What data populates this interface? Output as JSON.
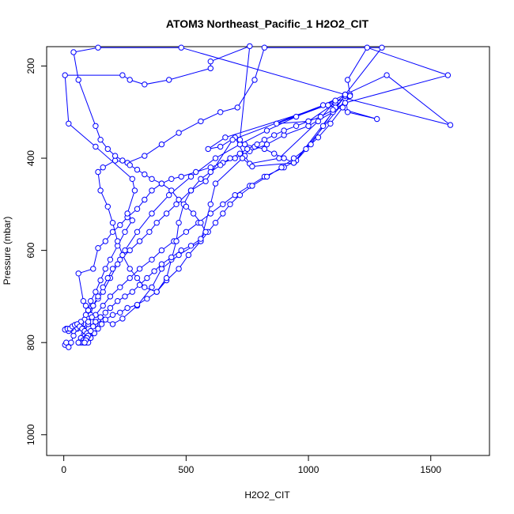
{
  "chart_data": {
    "type": "line",
    "title": "ATOM3 Northeast_Pacific_1 H2O2_CIT",
    "xlabel": "H2O2_CIT",
    "ylabel": "Pressure (mbar)",
    "xlim": [
      -70,
      1740
    ],
    "ylim": [
      1045,
      158
    ],
    "y_reversed": true,
    "x_ticks": [
      0,
      500,
      1000,
      1500
    ],
    "y_ticks": [
      200,
      400,
      600,
      800,
      1000
    ],
    "grid": false,
    "legend": "none",
    "series_color": "#0000ff",
    "marker": "open-circle",
    "series": [
      {
        "points": [
          [
            5,
            805
          ],
          [
            10,
            800
          ],
          [
            20,
            810
          ],
          [
            30,
            800
          ],
          [
            40,
            785
          ],
          [
            55,
            770
          ],
          [
            70,
            760
          ],
          [
            85,
            750
          ],
          [
            100,
            735
          ],
          [
            120,
            720
          ],
          [
            140,
            705
          ],
          [
            160,
            690
          ],
          [
            190,
            660
          ],
          [
            220,
            630
          ],
          [
            250,
            600
          ],
          [
            300,
            560
          ],
          [
            360,
            520
          ],
          [
            430,
            480
          ],
          [
            520,
            440
          ],
          [
            620,
            400
          ],
          [
            720,
            370
          ],
          [
            830,
            340
          ],
          [
            950,
            310
          ],
          [
            1060,
            285
          ],
          [
            1150,
            262
          ],
          [
            1320,
            220
          ],
          [
            1580,
            328
          ],
          [
            1150,
            270
          ],
          [
            870,
            325
          ],
          [
            1000,
            320
          ],
          [
            1110,
            280
          ],
          [
            1150,
            262
          ],
          [
            1160,
            300
          ],
          [
            1280,
            315
          ],
          [
            1080,
            285
          ],
          [
            660,
            355
          ],
          [
            590,
            380
          ],
          [
            640,
            375
          ],
          [
            700,
            355
          ],
          [
            740,
            395
          ],
          [
            760,
            412
          ],
          [
            880,
            400
          ],
          [
            1040,
            320
          ],
          [
            1110,
            275
          ],
          [
            690,
            360
          ],
          [
            580,
            450
          ],
          [
            520,
            470
          ],
          [
            460,
            500
          ],
          [
            420,
            520
          ],
          [
            380,
            540
          ],
          [
            350,
            560
          ],
          [
            310,
            580
          ],
          [
            270,
            600
          ],
          [
            230,
            620
          ],
          [
            200,
            640
          ],
          [
            180,
            660
          ],
          [
            160,
            680
          ],
          [
            140,
            700
          ],
          [
            120,
            720
          ],
          [
            110,
            740
          ],
          [
            100,
            760
          ],
          [
            85,
            775
          ],
          [
            70,
            790
          ],
          [
            60,
            800
          ],
          [
            80,
            770
          ],
          [
            100,
            755
          ],
          [
            130,
            740
          ],
          [
            160,
            720
          ],
          [
            190,
            700
          ],
          [
            230,
            680
          ],
          [
            270,
            660
          ],
          [
            310,
            640
          ],
          [
            360,
            620
          ],
          [
            400,
            600
          ],
          [
            450,
            580
          ],
          [
            500,
            560
          ],
          [
            550,
            540
          ],
          [
            600,
            520
          ],
          [
            650,
            500
          ],
          [
            700,
            480
          ],
          [
            760,
            460
          ],
          [
            820,
            440
          ],
          [
            900,
            420
          ],
          [
            950,
            405
          ],
          [
            1010,
            370
          ],
          [
            1060,
            330
          ],
          [
            1110,
            290
          ],
          [
            1150,
            265
          ],
          [
            940,
            410
          ],
          [
            770,
            418
          ],
          [
            730,
            400
          ],
          [
            620,
            455
          ],
          [
            600,
            500
          ],
          [
            560,
            580
          ],
          [
            470,
            610
          ],
          [
            400,
            640
          ],
          [
            360,
            680
          ],
          [
            300,
            720
          ],
          [
            240,
            748
          ],
          [
            200,
            760
          ],
          [
            160,
            750
          ],
          [
            130,
            760
          ],
          [
            115,
            745
          ],
          [
            100,
            730
          ],
          [
            90,
            720
          ],
          [
            80,
            710
          ],
          [
            60,
            650
          ],
          [
            120,
            640
          ],
          [
            140,
            595
          ],
          [
            170,
            580
          ],
          [
            200,
            560
          ],
          [
            230,
            545
          ],
          [
            260,
            528
          ],
          [
            300,
            510
          ],
          [
            330,
            490
          ],
          [
            360,
            470
          ],
          [
            400,
            455
          ],
          [
            440,
            445
          ],
          [
            480,
            440
          ],
          [
            540,
            430
          ],
          [
            600,
            420
          ],
          [
            650,
            410
          ],
          [
            700,
            400
          ],
          [
            760,
            385
          ],
          [
            830,
            370
          ],
          [
            900,
            350
          ],
          [
            1000,
            330
          ],
          [
            1100,
            300
          ],
          [
            1150,
            280
          ],
          [
            1570,
            220
          ],
          [
            1240,
            160
          ],
          [
            1160,
            230
          ],
          [
            1170,
            262
          ],
          [
            940,
            410
          ],
          [
            900,
            400
          ],
          [
            860,
            390
          ],
          [
            820,
            380
          ],
          [
            780,
            375
          ],
          [
            740,
            370
          ],
          [
            720,
            360
          ],
          [
            760,
            157
          ],
          [
            600,
            190
          ],
          [
            600,
            205
          ],
          [
            430,
            230
          ],
          [
            330,
            240
          ],
          [
            270,
            230
          ],
          [
            240,
            220
          ],
          [
            5,
            220
          ],
          [
            20,
            325
          ],
          [
            130,
            375
          ],
          [
            280,
            445
          ],
          [
            290,
            470
          ],
          [
            260,
            520
          ],
          [
            280,
            535
          ],
          [
            250,
            560
          ],
          [
            220,
            590
          ],
          [
            190,
            620
          ],
          [
            170,
            640
          ],
          [
            150,
            665
          ],
          [
            130,
            690
          ],
          [
            110,
            710
          ],
          [
            100,
            730
          ],
          [
            90,
            740
          ],
          [
            70,
            755
          ],
          [
            60,
            765
          ],
          [
            50,
            770
          ],
          [
            40,
            775
          ],
          [
            30,
            770
          ],
          [
            20,
            775
          ],
          [
            10,
            770
          ],
          [
            5,
            772
          ],
          [
            15,
            770
          ],
          [
            25,
            770
          ],
          [
            35,
            765
          ],
          [
            45,
            762
          ],
          [
            55,
            760
          ],
          [
            65,
            765
          ],
          [
            75,
            770
          ],
          [
            85,
            775
          ],
          [
            95,
            780
          ],
          [
            105,
            785
          ],
          [
            90,
            790
          ],
          [
            80,
            795
          ],
          [
            70,
            800
          ],
          [
            60,
            800
          ],
          [
            80,
            800
          ],
          [
            90,
            800
          ],
          [
            100,
            800
          ],
          [
            110,
            790
          ],
          [
            125,
            780
          ],
          [
            140,
            770
          ],
          [
            155,
            760
          ],
          [
            170,
            750
          ],
          [
            200,
            740
          ],
          [
            230,
            735
          ],
          [
            260,
            725
          ],
          [
            300,
            718
          ],
          [
            340,
            705
          ],
          [
            380,
            690
          ],
          [
            420,
            665
          ],
          [
            470,
            640
          ],
          [
            510,
            610
          ],
          [
            560,
            580
          ],
          [
            590,
            560
          ],
          [
            620,
            540
          ],
          [
            650,
            520
          ],
          [
            680,
            500
          ],
          [
            720,
            480
          ],
          [
            770,
            460
          ],
          [
            830,
            440
          ],
          [
            890,
            420
          ],
          [
            940,
            400
          ],
          [
            990,
            380
          ],
          [
            1040,
            355
          ],
          [
            1090,
            325
          ],
          [
            1140,
            290
          ],
          [
            1150,
            262
          ],
          [
            1300,
            160
          ],
          [
            820,
            160
          ],
          [
            780,
            230
          ],
          [
            710,
            290
          ],
          [
            640,
            300
          ],
          [
            560,
            320
          ],
          [
            470,
            345
          ],
          [
            400,
            370
          ],
          [
            330,
            395
          ],
          [
            260,
            410
          ],
          [
            210,
            405
          ],
          [
            160,
            420
          ],
          [
            140,
            430
          ],
          [
            150,
            470
          ],
          [
            180,
            505
          ],
          [
            200,
            540
          ],
          [
            220,
            580
          ],
          [
            240,
            610
          ],
          [
            270,
            640
          ],
          [
            300,
            660
          ],
          [
            330,
            680
          ],
          [
            380,
            690
          ],
          [
            420,
            660
          ],
          [
            440,
            620
          ],
          [
            460,
            580
          ],
          [
            470,
            540
          ],
          [
            490,
            500
          ],
          [
            520,
            470
          ],
          [
            560,
            445
          ],
          [
            600,
            430
          ],
          [
            640,
            415
          ],
          [
            680,
            400
          ],
          [
            720,
            390
          ],
          [
            750,
            380
          ],
          [
            790,
            370
          ],
          [
            820,
            360
          ],
          [
            860,
            350
          ],
          [
            900,
            340
          ],
          [
            950,
            330
          ],
          [
            1000,
            320
          ],
          [
            1050,
            310
          ],
          [
            1100,
            295
          ],
          [
            1150,
            280
          ],
          [
            1170,
            265
          ],
          [
            480,
            160
          ],
          [
            140,
            160
          ],
          [
            40,
            170
          ],
          [
            60,
            230
          ],
          [
            130,
            330
          ],
          [
            150,
            360
          ],
          [
            180,
            380
          ],
          [
            210,
            395
          ],
          [
            240,
            405
          ],
          [
            270,
            415
          ],
          [
            300,
            425
          ],
          [
            330,
            435
          ],
          [
            360,
            445
          ],
          [
            400,
            455
          ],
          [
            440,
            470
          ],
          [
            470,
            490
          ],
          [
            500,
            505
          ],
          [
            530,
            520
          ],
          [
            560,
            540
          ],
          [
            580,
            560
          ],
          [
            560,
            575
          ],
          [
            520,
            590
          ],
          [
            480,
            600
          ],
          [
            440,
            615
          ],
          [
            400,
            630
          ],
          [
            370,
            645
          ],
          [
            340,
            660
          ],
          [
            310,
            675
          ],
          [
            280,
            690
          ],
          [
            250,
            700
          ],
          [
            220,
            710
          ],
          [
            190,
            725
          ],
          [
            170,
            735
          ],
          [
            150,
            745
          ],
          [
            130,
            755
          ],
          [
            120,
            765
          ],
          [
            110,
            775
          ],
          [
            100,
            785
          ],
          [
            95,
            790
          ],
          [
            90,
            795
          ],
          [
            85,
            800
          ]
        ]
      }
    ]
  }
}
